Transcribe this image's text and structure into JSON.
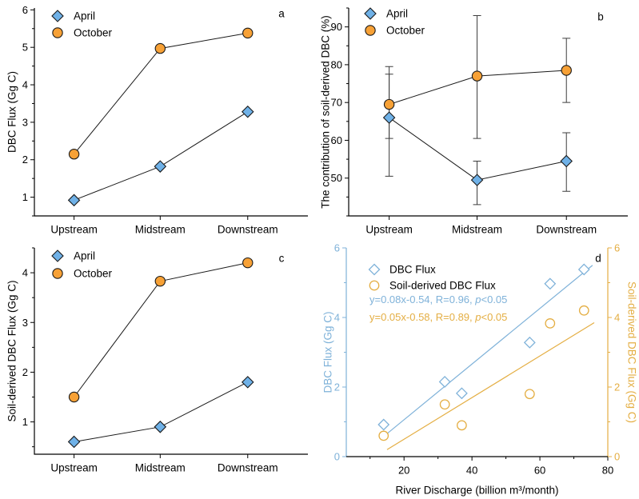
{
  "figure_background": "#ffffff",
  "colors": {
    "april": "#6fb1e7",
    "october": "#f7a136",
    "marker_outline": "#1a1a1a",
    "connector_line": "#1a1a1a",
    "error_bar": "#3d3d3d",
    "axis": "#000000",
    "scatter_blue": "#7fb2d9",
    "scatter_gold": "#e4ae43",
    "text": "#000000"
  },
  "chart_data": [
    {
      "panel": "a",
      "panel_label": "a",
      "type": "line",
      "categories": [
        "Upstream",
        "Midstream",
        "Downstream"
      ],
      "ylabel": "DBC Flux (Gg C)",
      "ylim": [
        0.5,
        6.05
      ],
      "yticks": [
        1,
        2,
        3,
        4,
        5,
        6
      ],
      "minor_step": 0.5,
      "legend_position": "top-left",
      "series": [
        {
          "name": "April",
          "marker": "diamond",
          "color": "#6fb1e7",
          "values": [
            0.92,
            1.82,
            3.28
          ]
        },
        {
          "name": "October",
          "marker": "circle",
          "color": "#f7a136",
          "values": [
            2.15,
            4.97,
            5.38
          ]
        }
      ]
    },
    {
      "panel": "b",
      "panel_label": "b",
      "type": "line",
      "categories": [
        "Upstream",
        "Midstream",
        "Downstream"
      ],
      "ylabel": "The contribution of soil-derived DBC (%)",
      "ylim": [
        40,
        95
      ],
      "yticks": [
        50,
        60,
        70,
        80,
        90
      ],
      "minor_step": 5,
      "legend_position": "top-left",
      "series": [
        {
          "name": "April",
          "marker": "diamond",
          "color": "#6fb1e7",
          "values": [
            66,
            49.5,
            54.5
          ],
          "err_lo": [
            50.5,
            43,
            46.5
          ],
          "err_hi": [
            77.5,
            54.5,
            62
          ]
        },
        {
          "name": "October",
          "marker": "circle",
          "color": "#f7a136",
          "values": [
            69.5,
            77,
            78.5
          ],
          "err_lo": [
            60.5,
            60.5,
            70
          ],
          "err_hi": [
            79.5,
            93,
            87
          ]
        }
      ]
    },
    {
      "panel": "c",
      "panel_label": "c",
      "type": "line",
      "categories": [
        "Upstream",
        "Midstream",
        "Downstream"
      ],
      "ylabel": "Soil-derived DBC Flux (Gg C)",
      "ylim": [
        0.35,
        4.5
      ],
      "yticks": [
        1,
        2,
        3,
        4
      ],
      "minor_step": 0.5,
      "legend_position": "top-left",
      "series": [
        {
          "name": "April",
          "marker": "diamond",
          "color": "#6fb1e7",
          "values": [
            0.6,
            0.9,
            1.8
          ]
        },
        {
          "name": "October",
          "marker": "circle",
          "color": "#f7a136",
          "values": [
            1.5,
            3.83,
            4.2
          ]
        }
      ]
    },
    {
      "panel": "d",
      "panel_label": "d",
      "type": "scatter",
      "xlabel": "River Discharge (billion m³/month)",
      "xlim": [
        3,
        80
      ],
      "xticks": [
        20,
        40,
        60,
        80
      ],
      "x_minor_step": 10,
      "left_axis": {
        "label": "DBC Flux (Gg C)",
        "lim": [
          0,
          6
        ],
        "ticks": [
          0,
          2,
          4,
          6
        ],
        "minor_step": 1,
        "color": "#7fb2d9"
      },
      "right_axis": {
        "label": "Soil-derived DBC Flux (Gg C)",
        "lim": [
          0,
          6
        ],
        "ticks": [
          0,
          2,
          4,
          6
        ],
        "minor_step": 1,
        "color": "#e4ae43"
      },
      "legend_position": "top-left",
      "series": [
        {
          "name": "DBC Flux",
          "marker": "diamond",
          "axis": "left",
          "color": "#7fb2d9",
          "x": [
            14,
            32,
            37,
            57,
            63,
            73
          ],
          "y": [
            0.92,
            2.15,
            1.82,
            3.28,
            4.97,
            5.38
          ],
          "fit_line": {
            "x1": 15,
            "y1": 0.66,
            "x2": 75.5,
            "y2": 5.5
          },
          "equation": "y=0.08x-0.54, R=0.96, p<0.05"
        },
        {
          "name": "Soil-derived DBC Flux",
          "marker": "circle",
          "axis": "right",
          "color": "#e4ae43",
          "x": [
            14,
            32,
            37,
            57,
            63,
            73
          ],
          "y": [
            0.6,
            1.5,
            0.9,
            1.8,
            3.83,
            4.2
          ],
          "fit_line": {
            "x1": 15,
            "y1": 0.2,
            "x2": 76,
            "y2": 3.85
          },
          "equation": "y=0.05x-0.58, R=0.89, p<0.05"
        }
      ]
    }
  ]
}
